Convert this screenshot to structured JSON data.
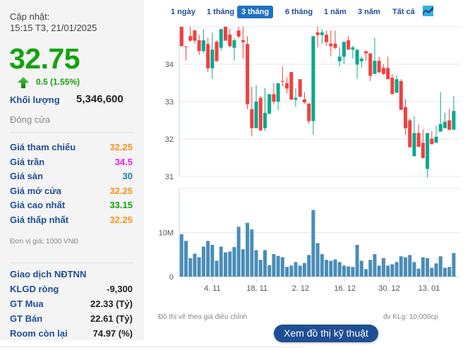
{
  "quote": {
    "update_label": "Cập nhật:",
    "update_time": "15:15 T3, 21/01/2025",
    "price": "32.75",
    "change": "0.5 (1.55%)",
    "volume_label": "Khối lượng",
    "volume": "5,346,600",
    "status": "Đóng cửa",
    "rows": [
      {
        "label": "Giá tham chiếu",
        "value": "32.25",
        "color": "#f7931e"
      },
      {
        "label": "Giá trần",
        "value": "34.5",
        "color": "#e61ee6"
      },
      {
        "label": "Giá sàn",
        "value": "30",
        "color": "#1a7fa8"
      },
      {
        "label": "Giá mở cửa",
        "value": "32.25",
        "color": "#f7931e"
      },
      {
        "label": "Giá cao nhất",
        "value": "33.15",
        "color": "#14a30f"
      },
      {
        "label": "Giá thấp nhất",
        "value": "32.25",
        "color": "#f7931e"
      }
    ],
    "unit_note": "Đơn vị giá: 1000 VNĐ",
    "foreign_title": "Giao dịch NĐTNN",
    "foreign_rows": [
      {
        "label": "KLGD ròng",
        "value": "-9,300"
      },
      {
        "label": "GT Mua",
        "value": "22.33 (Tỷ)"
      },
      {
        "label": "GT Bán",
        "value": "22.61 (Tỷ)"
      },
      {
        "label": "Room còn lại",
        "value": "74.97 (%)"
      }
    ]
  },
  "tabs": [
    {
      "label": "1 ngày",
      "active": false
    },
    {
      "label": "1 tháng",
      "active": false
    },
    {
      "label": "3 tháng",
      "active": true
    },
    {
      "label": "6 tháng",
      "active": false
    },
    {
      "label": "1 năm",
      "active": false
    },
    {
      "label": "3 năm",
      "active": false
    },
    {
      "label": "Tất cả",
      "active": false
    }
  ],
  "chart_type_icon": "area-chart-icon",
  "footer": {
    "note": "Đồ thị vẽ theo giá điều chỉnh",
    "unit": "đv KLg: 10,000cp",
    "button": "Xem đồ thị kỹ thuật"
  },
  "chart_data": {
    "type": "candlestick",
    "colors": {
      "up": "#0aa88e",
      "down": "#f23f3f",
      "volume": "#4a8db7"
    },
    "price_ylim": [
      31,
      35
    ],
    "price_ticks": [
      "34",
      "33",
      "32",
      "31"
    ],
    "price_tick_values": [
      34,
      33,
      32,
      31
    ],
    "volume_ylim": [
      0,
      20
    ],
    "volume_ticks": [
      {
        "label": "10M",
        "value": 10
      },
      {
        "label": "0",
        "value": 0
      }
    ],
    "x_ticks": [
      {
        "label": "4. 11",
        "index": 7
      },
      {
        "label": "18. 11",
        "index": 17.2
      },
      {
        "label": "2. 12",
        "index": 27.1
      },
      {
        "label": "16. 12",
        "index": 37.2
      },
      {
        "label": "30. 12",
        "index": 47.3
      },
      {
        "label": "13. 01",
        "index": 56.4
      }
    ],
    "ohlc": [
      [
        35.0,
        35.0,
        34.48,
        34.48
      ],
      [
        34.48,
        34.48,
        34.1,
        34.47
      ],
      [
        34.75,
        35.0,
        34.6,
        34.63
      ],
      [
        34.9,
        34.94,
        34.55,
        34.63
      ],
      [
        34.64,
        34.79,
        34.25,
        34.35
      ],
      [
        34.35,
        34.94,
        34.3,
        34.64
      ],
      [
        34.54,
        34.7,
        33.8,
        33.89
      ],
      [
        33.89,
        34.85,
        33.61,
        34.39
      ],
      [
        34.6,
        34.64,
        34.08,
        34.08
      ],
      [
        34.44,
        34.94,
        34.36,
        34.94
      ],
      [
        35.0,
        35.0,
        34.63,
        34.63
      ],
      [
        34.79,
        34.94,
        34.45,
        34.48
      ],
      [
        34.44,
        34.7,
        34.1,
        34.64
      ],
      [
        34.9,
        35.0,
        34.7,
        34.74
      ],
      [
        34.64,
        35.0,
        34.15,
        34.59
      ],
      [
        34.54,
        34.75,
        32.8,
        32.93
      ],
      [
        32.8,
        33.4,
        32.07,
        32.29
      ],
      [
        32.29,
        33.45,
        32.29,
        33.0
      ],
      [
        33.1,
        33.15,
        32.22,
        32.23
      ],
      [
        32.29,
        33.36,
        32.22,
        32.7
      ],
      [
        32.68,
        33.2,
        32.66,
        33.2
      ],
      [
        33.2,
        33.49,
        32.92,
        33.0
      ],
      [
        33.0,
        33.49,
        32.77,
        33.49
      ],
      [
        33.55,
        33.94,
        33.41,
        33.54
      ],
      [
        33.49,
        33.64,
        33.22,
        33.35
      ],
      [
        33.79,
        33.79,
        33.05,
        33.05
      ],
      [
        33.05,
        33.36,
        32.86,
        33.1
      ],
      [
        33.6,
        33.6,
        33.11,
        33.13
      ],
      [
        33.06,
        33.25,
        32.95,
        32.98
      ],
      [
        32.95,
        32.95,
        32.41,
        32.48
      ],
      [
        32.48,
        34.75,
        32.11,
        34.75
      ],
      [
        34.85,
        35.0,
        34.45,
        34.78
      ],
      [
        34.78,
        34.94,
        34.55,
        34.85
      ],
      [
        34.79,
        34.9,
        34.5,
        34.59
      ],
      [
        34.55,
        34.9,
        34.21,
        34.48
      ],
      [
        34.55,
        34.9,
        34.4,
        34.44
      ],
      [
        34.08,
        34.45,
        33.95,
        34.2
      ],
      [
        34.2,
        34.6,
        34.01,
        34.6
      ],
      [
        34.64,
        34.75,
        34.39,
        34.39
      ],
      [
        34.39,
        34.49,
        34.15,
        34.45
      ],
      [
        33.99,
        34.39,
        33.61,
        34.39
      ],
      [
        34.08,
        34.2,
        33.91,
        34.15
      ],
      [
        34.35,
        34.35,
        34.1,
        34.29
      ],
      [
        34.29,
        34.29,
        33.55,
        33.69
      ],
      [
        33.74,
        34.7,
        33.74,
        34.09
      ],
      [
        34.09,
        34.2,
        33.78,
        33.78
      ],
      [
        33.9,
        34.0,
        33.71,
        33.74
      ],
      [
        33.9,
        34.2,
        33.6,
        33.6
      ],
      [
        33.64,
        33.74,
        33.2,
        33.2
      ],
      [
        33.24,
        33.71,
        33.22,
        33.6
      ],
      [
        33.55,
        33.6,
        32.78,
        32.78
      ],
      [
        32.85,
        33.06,
        32.11,
        32.29
      ],
      [
        32.5,
        32.55,
        31.78,
        31.78
      ],
      [
        31.54,
        32.61,
        31.54,
        32.16
      ],
      [
        32.16,
        32.39,
        31.79,
        31.79
      ],
      [
        31.9,
        32.26,
        31.49,
        31.49
      ],
      [
        31.2,
        32.16,
        30.97,
        32.16
      ],
      [
        32.01,
        32.21,
        31.86,
        31.86
      ],
      [
        31.9,
        32.36,
        31.9,
        32.06
      ],
      [
        32.2,
        33.25,
        32.2,
        32.4
      ],
      [
        32.29,
        32.7,
        32.29,
        32.46
      ],
      [
        32.5,
        32.8,
        32.22,
        32.25
      ],
      [
        32.25,
        33.15,
        32.25,
        32.75
      ]
    ],
    "volume_millions": [
      9.6,
      8.1,
      4.2,
      5.2,
      4.4,
      6.8,
      8.1,
      7.2,
      3.6,
      6.8,
      5.5,
      5.7,
      6.7,
      11.3,
      6.2,
      12.2,
      10.7,
      6.0,
      3.8,
      6.0,
      2.6,
      5.1,
      4.7,
      4.4,
      2.2,
      2.5,
      3.3,
      2.5,
      3.1,
      4.9,
      15.1,
      7.6,
      5.1,
      3.8,
      3.6,
      3.9,
      3.3,
      2.5,
      2.3,
      2.2,
      7.2,
      3.6,
      1.7,
      3.8,
      5.1,
      2.5,
      4.2,
      2.5,
      2.8,
      3.3,
      4.6,
      4.4,
      4.9,
      3.3,
      1.8,
      4.4,
      4.2,
      2.0,
      3.0,
      4.6,
      2.0,
      2.2,
      5.35
    ]
  }
}
